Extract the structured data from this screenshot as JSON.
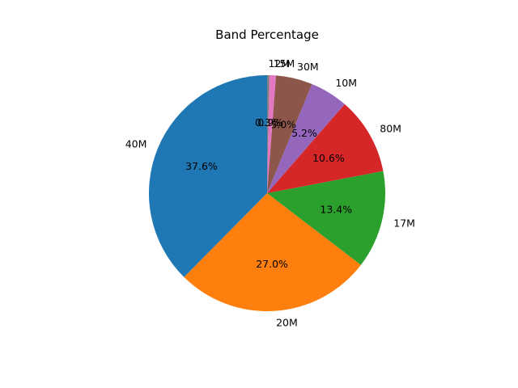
{
  "figure": {
    "background_color": "#ffffff",
    "text_color": "#000000"
  },
  "chart_data": {
    "type": "pie",
    "title": "Band Percentage",
    "start_angle": 90,
    "counterclockwise": true,
    "label_distance": 1.1,
    "pct_distance": 0.6,
    "legend": "none",
    "slices": [
      {
        "label": "40M",
        "value": 37.6,
        "percent_label": "37.6%",
        "color": "#1f77b4"
      },
      {
        "label": "20M",
        "value": 27.0,
        "percent_label": "27.0%",
        "color": "#ff7f0e"
      },
      {
        "label": "17M",
        "value": 13.4,
        "percent_label": "13.4%",
        "color": "#2ca02c"
      },
      {
        "label": "80M",
        "value": 10.6,
        "percent_label": "10.6%",
        "color": "#d62728"
      },
      {
        "label": "10M",
        "value": 5.2,
        "percent_label": "5.2%",
        "color": "#9467bd"
      },
      {
        "label": "30M",
        "value": 5.0,
        "percent_label": "5.0%",
        "color": "#8c564b"
      },
      {
        "label": "15M",
        "value": 0.9,
        "percent_label": "0.9%",
        "color": "#e377c2"
      },
      {
        "label": "12M",
        "value": 0.3,
        "percent_label": "0.3%",
        "color": "#7f7f7f"
      }
    ]
  }
}
